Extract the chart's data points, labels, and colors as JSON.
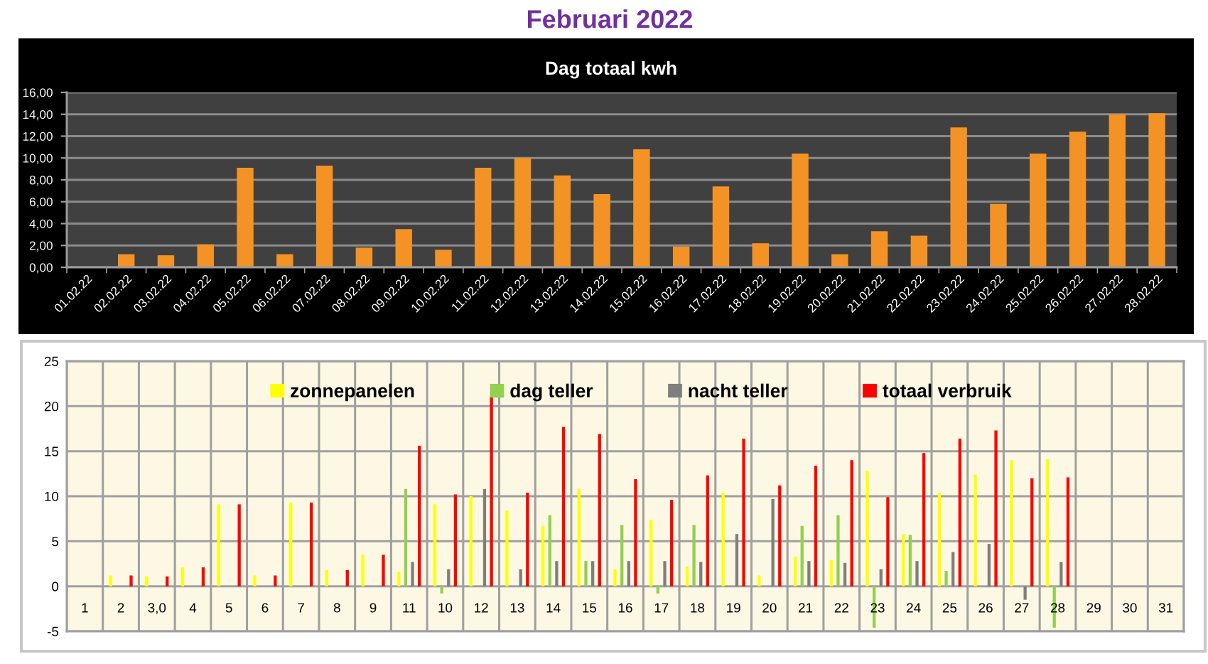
{
  "chart_data": [
    {
      "type": "bar",
      "title": "Februari 2022",
      "subtitle": "Dag totaal kwh",
      "categories": [
        "01.02.22",
        "02.02.22",
        "03.02.22",
        "04.02.22",
        "05.02.22",
        "06.02.22",
        "07.02.22",
        "08.02.22",
        "09.02.22",
        "10.02.22",
        "11.02.22",
        "12.02.22",
        "13.02.22",
        "14.02.22",
        "15.02.22",
        "16.02.22",
        "17.02.22",
        "18.02.22",
        "19.02.22",
        "20.02.22",
        "21.02.22",
        "22.02.22",
        "23.02.22",
        "24.02.22",
        "25.02.22",
        "26.02.22",
        "27.02.22",
        "28.02.22"
      ],
      "values": [
        0,
        1.2,
        1.1,
        2.1,
        9.1,
        1.2,
        9.3,
        1.8,
        3.5,
        1.6,
        9.1,
        10.0,
        8.4,
        6.7,
        10.8,
        1.9,
        7.4,
        2.2,
        10.4,
        1.2,
        3.3,
        2.9,
        12.8,
        5.8,
        10.4,
        12.4,
        14.0,
        14.1
      ],
      "color": "#f39325",
      "ylim": [
        0,
        16
      ],
      "yticks": [
        {
          "value": 0,
          "label": "0,00"
        },
        {
          "value": 2,
          "label": "2,00"
        },
        {
          "value": 4,
          "label": "4,00"
        },
        {
          "value": 6,
          "label": "6,00"
        },
        {
          "value": 8,
          "label": "8,00"
        },
        {
          "value": 10,
          "label": "10,00"
        },
        {
          "value": 12,
          "label": "12,00"
        },
        {
          "value": 14,
          "label": "14,00"
        },
        {
          "value": 16,
          "label": "16,00"
        }
      ],
      "grid": "y"
    },
    {
      "type": "bar",
      "categories": [
        "1",
        "2",
        "3,0",
        "4",
        "5",
        "6",
        "7",
        "8",
        "9",
        "11",
        "10",
        "12",
        "13",
        "14",
        "15",
        "16",
        "17",
        "18",
        "19",
        "20",
        "21",
        "22",
        "23",
        "24",
        "25",
        "26",
        "27",
        "28",
        "29",
        "30",
        "31"
      ],
      "series": [
        {
          "name": "zonnepanelen",
          "color": "#ffff00",
          "values": [
            null,
            1.2,
            1.1,
            2.1,
            9.1,
            1.2,
            9.3,
            1.8,
            3.5,
            1.6,
            9.1,
            10.0,
            8.4,
            6.7,
            10.8,
            1.9,
            7.4,
            2.2,
            10.4,
            1.2,
            3.3,
            2.9,
            12.8,
            5.8,
            10.4,
            12.4,
            14.0,
            14.1,
            null,
            null,
            null
          ]
        },
        {
          "name": "dag teller",
          "color": "#92d050",
          "values": [
            null,
            null,
            null,
            null,
            null,
            null,
            null,
            null,
            null,
            10.8,
            -0.8,
            null,
            null,
            7.9,
            2.8,
            6.8,
            -0.8,
            6.8,
            null,
            null,
            6.7,
            7.9,
            -4.6,
            5.7,
            1.7,
            null,
            null,
            -4.6,
            null,
            null,
            null
          ]
        },
        {
          "name": "nacht teller",
          "color": "#7f7f7f",
          "values": [
            null,
            null,
            null,
            null,
            null,
            null,
            null,
            null,
            null,
            2.7,
            1.9,
            10.8,
            1.9,
            2.8,
            2.8,
            2.8,
            2.8,
            2.7,
            5.8,
            9.7,
            2.8,
            2.6,
            1.9,
            2.8,
            3.8,
            4.7,
            -1.5,
            2.7,
            null,
            null,
            null
          ]
        },
        {
          "name": "totaal verbruik",
          "color": "#ff0000",
          "values": [
            null,
            1.2,
            1.1,
            2.1,
            9.1,
            1.2,
            9.3,
            1.8,
            3.5,
            15.6,
            10.2,
            21.1,
            10.4,
            17.7,
            16.9,
            11.9,
            9.6,
            12.3,
            16.4,
            11.2,
            13.4,
            14.0,
            9.9,
            14.8,
            16.4,
            17.3,
            12.0,
            12.1,
            null,
            null,
            null
          ]
        }
      ],
      "ylim": [
        -5,
        25
      ],
      "yticks": [
        -5,
        0,
        5,
        10,
        15,
        20,
        25
      ],
      "grid": true,
      "legend": "top"
    }
  ]
}
